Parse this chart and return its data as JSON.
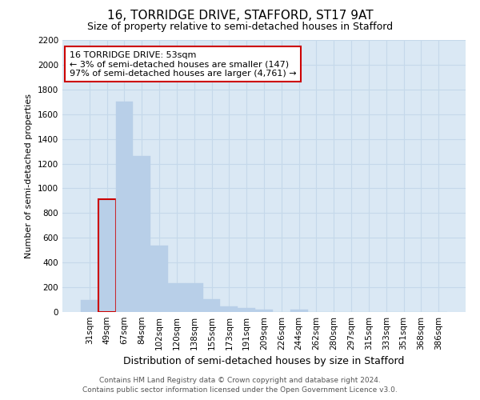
{
  "title": "16, TORRIDGE DRIVE, STAFFORD, ST17 9AT",
  "subtitle": "Size of property relative to semi-detached houses in Stafford",
  "xlabel": "Distribution of semi-detached houses by size in Stafford",
  "ylabel": "Number of semi-detached properties",
  "categories": [
    "31sqm",
    "49sqm",
    "67sqm",
    "84sqm",
    "102sqm",
    "120sqm",
    "138sqm",
    "155sqm",
    "173sqm",
    "191sqm",
    "209sqm",
    "226sqm",
    "244sqm",
    "262sqm",
    "280sqm",
    "297sqm",
    "315sqm",
    "333sqm",
    "351sqm",
    "368sqm",
    "386sqm"
  ],
  "values": [
    100,
    910,
    1700,
    1260,
    540,
    235,
    235,
    105,
    45,
    35,
    20,
    0,
    20,
    0,
    0,
    0,
    0,
    0,
    0,
    0,
    0
  ],
  "bar_color": "#b8cfe8",
  "bar_edgecolor": "#b8cfe8",
  "highlight_bar_index": 1,
  "highlight_bar_edgecolor": "#cc0000",
  "annotation_line1": "16 TORRIDGE DRIVE: 53sqm",
  "annotation_line2": "← 3% of semi-detached houses are smaller (147)",
  "annotation_line3": "97% of semi-detached houses are larger (4,761) →",
  "annotation_box_edgecolor": "#cc0000",
  "annotation_box_facecolor": "#ffffff",
  "ylim_max": 2200,
  "yticks": [
    0,
    200,
    400,
    600,
    800,
    1000,
    1200,
    1400,
    1600,
    1800,
    2000,
    2200
  ],
  "grid_color": "#c5d8ea",
  "background_color": "#dae8f4",
  "footer_line1": "Contains HM Land Registry data © Crown copyright and database right 2024.",
  "footer_line2": "Contains public sector information licensed under the Open Government Licence v3.0.",
  "title_fontsize": 11,
  "subtitle_fontsize": 9,
  "xlabel_fontsize": 9,
  "ylabel_fontsize": 8,
  "tick_fontsize": 7.5,
  "annot_fontsize": 8,
  "footer_fontsize": 6.5
}
